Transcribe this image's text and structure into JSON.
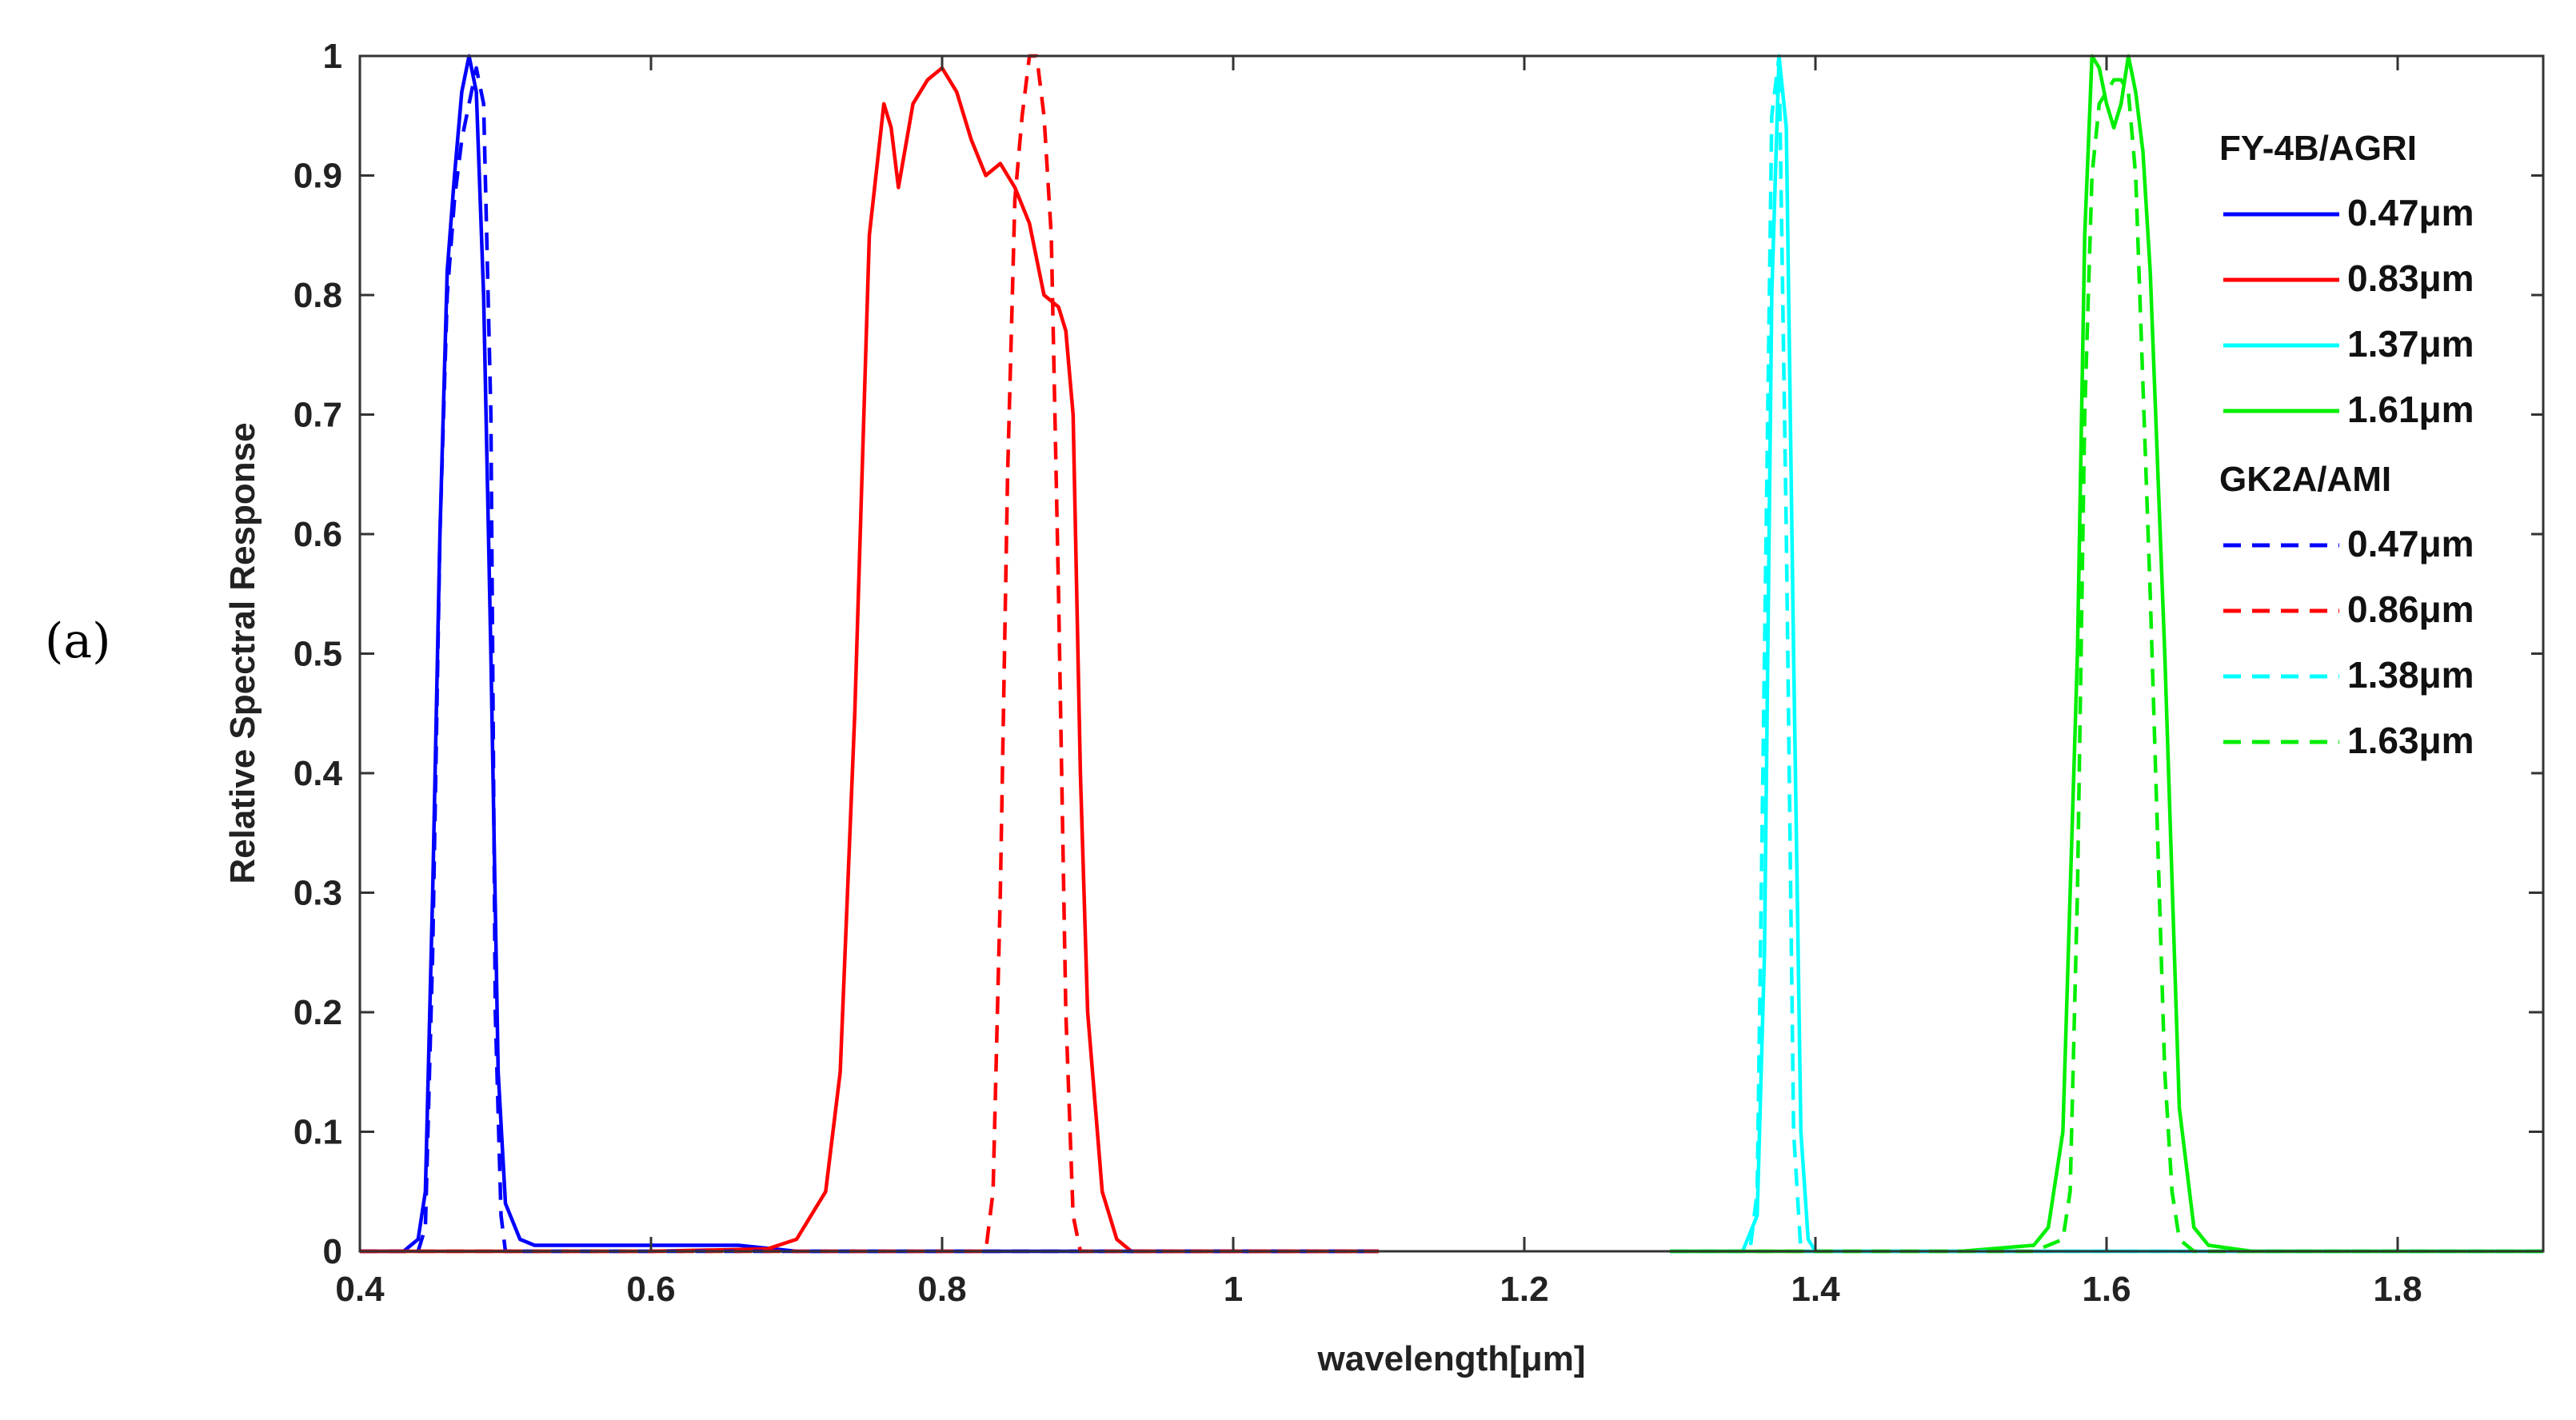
{
  "panel_label": "(a)",
  "chart_data": {
    "type": "line",
    "title": "",
    "xlabel": "wavelength[μm]",
    "ylabel": "Relative Spectral Response",
    "xlim": [
      0.4,
      1.9
    ],
    "ylim": [
      0,
      1
    ],
    "grid": false,
    "legend_position": "top-right",
    "x_ticks": [
      {
        "value": 0.4,
        "label": "0.4"
      },
      {
        "value": 0.6,
        "label": "0.6"
      },
      {
        "value": 0.8,
        "label": "0.8"
      },
      {
        "value": 1.0,
        "label": "1"
      },
      {
        "value": 1.2,
        "label": "1.2"
      },
      {
        "value": 1.4,
        "label": "1.4"
      },
      {
        "value": 1.6,
        "label": "1.6"
      },
      {
        "value": 1.8,
        "label": "1.8"
      }
    ],
    "y_ticks": [
      {
        "value": 0,
        "label": "0"
      },
      {
        "value": 0.1,
        "label": "0.1"
      },
      {
        "value": 0.2,
        "label": "0.2"
      },
      {
        "value": 0.3,
        "label": "0.3"
      },
      {
        "value": 0.4,
        "label": "0.4"
      },
      {
        "value": 0.5,
        "label": "0.5"
      },
      {
        "value": 0.6,
        "label": "0.6"
      },
      {
        "value": 0.7,
        "label": "0.7"
      },
      {
        "value": 0.8,
        "label": "0.8"
      },
      {
        "value": 0.9,
        "label": "0.9"
      },
      {
        "value": 1,
        "label": "1"
      }
    ],
    "legend_groups": [
      {
        "title": "FY-4B/AGRI",
        "items": [
          0,
          1,
          2,
          3
        ]
      },
      {
        "title": "GK2A/AMI",
        "items": [
          4,
          5,
          6,
          7
        ]
      }
    ],
    "series": [
      {
        "name": "0.47μm",
        "group": "FY-4B/AGRI",
        "color": "#0000ff",
        "style": "solid",
        "x": [
          0.4,
          0.43,
          0.44,
          0.445,
          0.45,
          0.455,
          0.46,
          0.465,
          0.47,
          0.475,
          0.48,
          0.485,
          0.49,
          0.495,
          0.5,
          0.51,
          0.52,
          0.55,
          0.59,
          0.66,
          0.7,
          0.8,
          1.0,
          1.1
        ],
        "y": [
          0.0,
          0.0,
          0.01,
          0.05,
          0.3,
          0.6,
          0.82,
          0.9,
          0.97,
          1.0,
          0.97,
          0.8,
          0.5,
          0.15,
          0.04,
          0.01,
          0.005,
          0.005,
          0.005,
          0.005,
          0.0,
          0.0,
          0.0,
          0.0
        ]
      },
      {
        "name": "0.83μm",
        "group": "FY-4B/AGRI",
        "color": "#ff0000",
        "style": "solid",
        "x": [
          0.4,
          0.6,
          0.68,
          0.7,
          0.72,
          0.73,
          0.74,
          0.75,
          0.76,
          0.765,
          0.77,
          0.78,
          0.79,
          0.8,
          0.81,
          0.82,
          0.83,
          0.84,
          0.85,
          0.86,
          0.87,
          0.88,
          0.885,
          0.89,
          0.895,
          0.9,
          0.91,
          0.92,
          0.93,
          1.0,
          1.1
        ],
        "y": [
          0.0,
          0.0,
          0.002,
          0.01,
          0.05,
          0.15,
          0.45,
          0.85,
          0.96,
          0.94,
          0.89,
          0.96,
          0.98,
          0.99,
          0.97,
          0.93,
          0.9,
          0.91,
          0.89,
          0.86,
          0.8,
          0.79,
          0.77,
          0.7,
          0.4,
          0.2,
          0.05,
          0.01,
          0.0,
          0.0,
          0.0
        ]
      },
      {
        "name": "1.37μm",
        "group": "FY-4B/AGRI",
        "color": "#00ffff",
        "style": "solid",
        "x": [
          1.3,
          1.35,
          1.36,
          1.365,
          1.37,
          1.375,
          1.38,
          1.385,
          1.39,
          1.395,
          1.4,
          1.45,
          1.6,
          1.9
        ],
        "y": [
          0.0,
          0.0,
          0.03,
          0.25,
          0.8,
          1.0,
          0.94,
          0.5,
          0.1,
          0.01,
          0.0,
          0.0,
          0.0,
          0.0
        ]
      },
      {
        "name": "1.61μm",
        "group": "FY-4B/AGRI",
        "color": "#00ee00",
        "style": "solid",
        "x": [
          1.3,
          1.5,
          1.55,
          1.56,
          1.57,
          1.58,
          1.585,
          1.59,
          1.595,
          1.6,
          1.605,
          1.61,
          1.615,
          1.62,
          1.625,
          1.63,
          1.64,
          1.65,
          1.66,
          1.67,
          1.7,
          1.9
        ],
        "y": [
          0.0,
          0.0,
          0.005,
          0.02,
          0.1,
          0.5,
          0.85,
          1.0,
          0.99,
          0.96,
          0.94,
          0.96,
          1.0,
          0.97,
          0.92,
          0.82,
          0.5,
          0.12,
          0.02,
          0.005,
          0.0,
          0.0
        ]
      },
      {
        "name": "0.47μm",
        "group": "GK2A/AMI",
        "color": "#0000ff",
        "style": "dashed",
        "x": [
          0.4,
          0.44,
          0.445,
          0.45,
          0.455,
          0.46,
          0.465,
          0.47,
          0.475,
          0.48,
          0.485,
          0.49,
          0.493,
          0.497,
          0.5,
          0.52,
          0.6,
          1.1
        ],
        "y": [
          0.0,
          0.0,
          0.02,
          0.25,
          0.6,
          0.8,
          0.88,
          0.93,
          0.96,
          0.99,
          0.96,
          0.7,
          0.2,
          0.03,
          0.0,
          0.0,
          0.0,
          0.0
        ]
      },
      {
        "name": "0.86μm",
        "group": "GK2A/AMI",
        "color": "#ff0000",
        "style": "dashed",
        "x": [
          0.4,
          0.83,
          0.835,
          0.84,
          0.845,
          0.85,
          0.855,
          0.86,
          0.865,
          0.87,
          0.875,
          0.88,
          0.885,
          0.89,
          0.895,
          1.0,
          1.1
        ],
        "y": [
          0.0,
          0.0,
          0.05,
          0.3,
          0.65,
          0.88,
          0.95,
          1.0,
          1.0,
          0.95,
          0.85,
          0.55,
          0.2,
          0.03,
          0.0,
          0.0,
          0.0
        ]
      },
      {
        "name": "1.38μm",
        "group": "GK2A/AMI",
        "color": "#00ffff",
        "style": "dashed",
        "x": [
          1.3,
          1.355,
          1.36,
          1.365,
          1.37,
          1.375,
          1.38,
          1.385,
          1.39,
          1.45,
          1.9
        ],
        "y": [
          0.0,
          0.0,
          0.05,
          0.5,
          0.95,
          1.0,
          0.6,
          0.1,
          0.0,
          0.0,
          0.0
        ]
      },
      {
        "name": "1.63μm",
        "group": "GK2A/AMI",
        "color": "#00ee00",
        "style": "dashed",
        "x": [
          1.3,
          1.55,
          1.57,
          1.575,
          1.58,
          1.585,
          1.59,
          1.595,
          1.6,
          1.605,
          1.61,
          1.615,
          1.62,
          1.63,
          1.64,
          1.645,
          1.65,
          1.66,
          1.7,
          1.9
        ],
        "y": [
          0.0,
          0.0,
          0.01,
          0.05,
          0.3,
          0.7,
          0.9,
          0.96,
          0.97,
          0.98,
          0.98,
          0.97,
          0.9,
          0.55,
          0.15,
          0.05,
          0.01,
          0.0,
          0.0,
          0.0
        ]
      }
    ]
  }
}
